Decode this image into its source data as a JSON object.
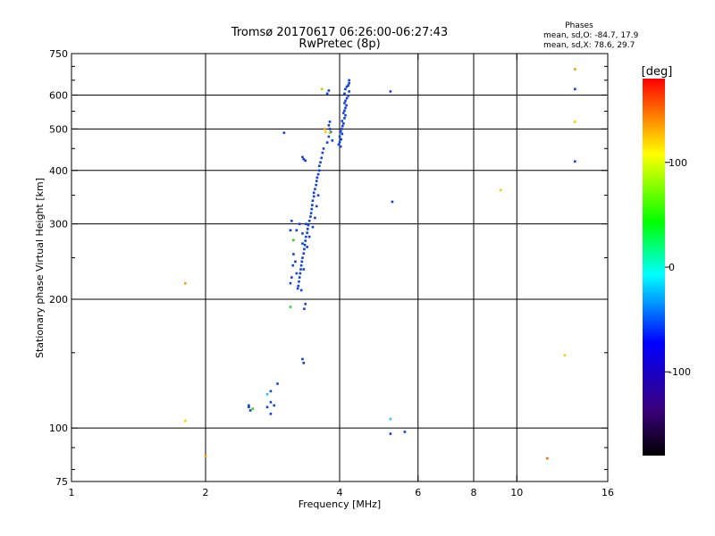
{
  "chart_data": {
    "type": "scatter",
    "title": "Tromsø 20170617 06:26:00-06:27:43",
    "subtitle": "RwPretec (8p)",
    "xlabel": "Frequency [MHz]",
    "ylabel": "Stationary phase Virtual Height [km]",
    "x_scale": "log2",
    "y_scale": "log",
    "xlim": [
      1,
      16
    ],
    "ylim": [
      75,
      750
    ],
    "x_ticks": [
      1,
      2,
      4,
      6,
      8,
      10,
      16
    ],
    "y_ticks": [
      75,
      100,
      200,
      300,
      400,
      500,
      600,
      750
    ],
    "x_grid": [
      2,
      4,
      6,
      8,
      10
    ],
    "y_grid": [
      100,
      200,
      300,
      400,
      500,
      600
    ],
    "grid": true,
    "stats": {
      "title": "Phases",
      "line_o": "mean, sd,O: -84.7, 17.9",
      "line_x": "mean, sd,X:  78.6, 29.7"
    },
    "colorbar": {
      "label": "[deg]",
      "range": [
        -180,
        180
      ],
      "ticks": [
        100,
        0,
        -100
      ],
      "colors": [
        "#000000",
        "#3a007a",
        "#0000ff",
        "#00ffff",
        "#00ff00",
        "#ffff00",
        "#ff0000"
      ]
    },
    "point_color": "#1040e0",
    "points": [
      [
        4.2,
        650
      ],
      [
        4.2,
        640
      ],
      [
        4.18,
        632
      ],
      [
        4.15,
        628
      ],
      [
        4.12,
        620
      ],
      [
        4.2,
        612
      ],
      [
        4.1,
        605
      ],
      [
        4.18,
        598
      ],
      [
        4.15,
        590
      ],
      [
        4.12,
        582
      ],
      [
        4.1,
        575
      ],
      [
        4.14,
        568
      ],
      [
        4.12,
        560
      ],
      [
        4.1,
        552
      ],
      [
        4.08,
        545
      ],
      [
        4.12,
        538
      ],
      [
        4.1,
        530
      ],
      [
        4.05,
        522
      ],
      [
        4.08,
        515
      ],
      [
        4.06,
        508
      ],
      [
        4.04,
        500
      ],
      [
        4.02,
        493
      ],
      [
        4.05,
        487
      ],
      [
        4.0,
        480
      ],
      [
        4.03,
        473
      ],
      [
        4.0,
        466
      ],
      [
        3.98,
        460
      ],
      [
        4.02,
        455
      ],
      [
        3.8,
        520
      ],
      [
        3.78,
        510
      ],
      [
        3.8,
        500
      ],
      [
        3.82,
        492
      ],
      [
        3.78,
        480
      ],
      [
        3.75,
        465
      ],
      [
        3.85,
        470
      ],
      [
        3.78,
        615
      ],
      [
        3.75,
        605
      ],
      [
        3.68,
        450
      ],
      [
        3.66,
        440
      ],
      [
        3.64,
        428
      ],
      [
        3.62,
        418
      ],
      [
        3.6,
        410
      ],
      [
        3.6,
        400
      ],
      [
        3.58,
        392
      ],
      [
        3.56,
        385
      ],
      [
        3.55,
        378
      ],
      [
        3.54,
        370
      ],
      [
        3.52,
        362
      ],
      [
        3.5,
        355
      ],
      [
        3.5,
        348
      ],
      [
        3.48,
        340
      ],
      [
        3.47,
        332
      ],
      [
        3.46,
        325
      ],
      [
        3.45,
        318
      ],
      [
        3.44,
        312
      ],
      [
        3.42,
        305
      ],
      [
        3.4,
        298
      ],
      [
        3.39,
        292
      ],
      [
        3.38,
        286
      ],
      [
        3.36,
        280
      ],
      [
        3.35,
        274
      ],
      [
        3.34,
        268
      ],
      [
        3.33,
        262
      ],
      [
        3.32,
        256
      ],
      [
        3.3,
        250
      ],
      [
        3.29,
        245
      ],
      [
        3.28,
        240
      ],
      [
        3.27,
        235
      ],
      [
        3.26,
        230
      ],
      [
        3.25,
        225
      ],
      [
        3.24,
        220
      ],
      [
        3.23,
        215
      ],
      [
        3.22,
        212
      ],
      [
        3.2,
        230
      ],
      [
        3.18,
        245
      ],
      [
        3.15,
        255
      ],
      [
        3.14,
        240
      ],
      [
        3.12,
        225
      ],
      [
        3.1,
        218
      ],
      [
        3.3,
        270
      ],
      [
        3.42,
        280
      ],
      [
        3.48,
        295
      ],
      [
        3.52,
        310
      ],
      [
        3.55,
        330
      ],
      [
        3.58,
        350
      ],
      [
        3.2,
        290
      ],
      [
        3.25,
        300
      ],
      [
        3.3,
        285
      ],
      [
        3.36,
        300
      ],
      [
        3.38,
        265
      ],
      [
        3.32,
        235
      ],
      [
        3.28,
        210
      ],
      [
        3.12,
        305
      ],
      [
        3.1,
        290
      ],
      [
        3.35,
        195
      ],
      [
        3.33,
        190
      ],
      [
        3.3,
        430
      ],
      [
        3.32,
        425
      ],
      [
        3.35,
        422
      ],
      [
        3.0,
        490
      ],
      [
        3.3,
        145
      ],
      [
        3.32,
        142
      ],
      [
        2.9,
        127
      ],
      [
        2.8,
        122
      ],
      [
        2.8,
        115
      ],
      [
        2.75,
        112
      ],
      [
        2.8,
        108
      ],
      [
        2.85,
        113
      ],
      [
        2.5,
        113
      ],
      [
        2.5,
        112
      ],
      [
        2.52,
        110
      ],
      [
        5.2,
        612
      ],
      [
        5.25,
        338
      ],
      [
        5.2,
        97
      ],
      [
        5.6,
        98
      ],
      [
        13.5,
        620
      ],
      [
        13.5,
        420
      ]
    ],
    "other_points": [
      {
        "x": 3.7,
        "y": 500,
        "color": "#ff9900"
      },
      {
        "x": 3.72,
        "y": 492,
        "color": "#ffcc00"
      },
      {
        "x": 3.65,
        "y": 620,
        "color": "#a0e000"
      },
      {
        "x": 3.8,
        "y": 490,
        "color": "#c0d000"
      },
      {
        "x": 3.1,
        "y": 192,
        "color": "#30d030"
      },
      {
        "x": 3.15,
        "y": 275,
        "color": "#30d030"
      },
      {
        "x": 2.75,
        "y": 120,
        "color": "#30c0ff"
      },
      {
        "x": 2.55,
        "y": 111,
        "color": "#30d030"
      },
      {
        "x": 5.2,
        "y": 105,
        "color": "#30c0ff"
      },
      {
        "x": 1.8,
        "y": 218,
        "color": "#ff9900"
      },
      {
        "x": 1.8,
        "y": 104,
        "color": "#ffcc00"
      },
      {
        "x": 2.0,
        "y": 86,
        "color": "#ff9900"
      },
      {
        "x": 9.2,
        "y": 360,
        "color": "#ffcc00"
      },
      {
        "x": 12.8,
        "y": 148,
        "color": "#ffcc00"
      },
      {
        "x": 11.7,
        "y": 85,
        "color": "#ff6600"
      },
      {
        "x": 13.5,
        "y": 690,
        "color": "#ff9900"
      },
      {
        "x": 13.5,
        "y": 520,
        "color": "#ffcc00"
      }
    ]
  }
}
